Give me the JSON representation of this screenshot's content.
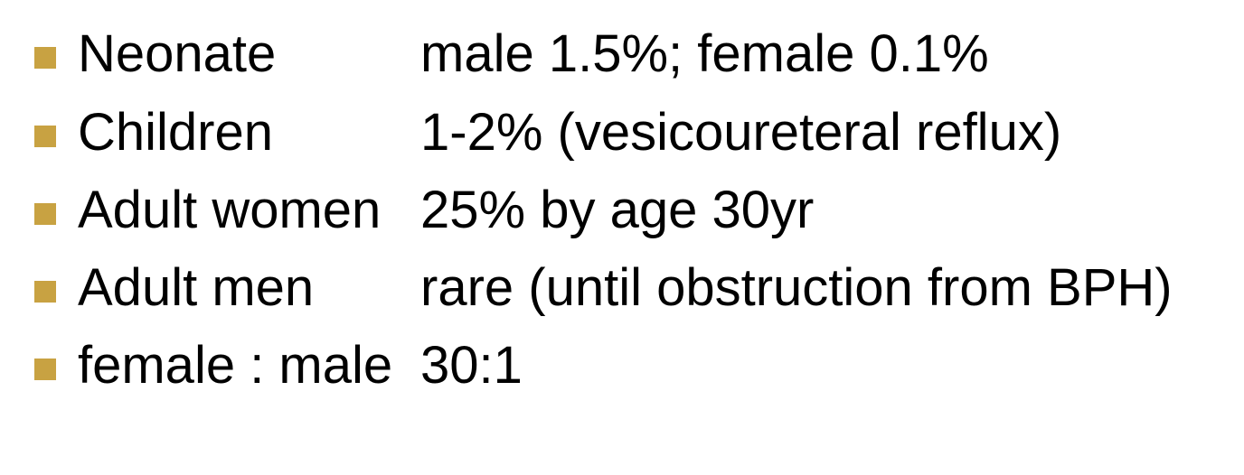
{
  "rows": [
    {
      "label": "Neonate",
      "value": "male 1.5%; female 0.1%"
    },
    {
      "label": "Children",
      "value": "1-2% (vesicoureteral reflux)"
    },
    {
      "label": "Adult women",
      "value": "25% by age 30yr"
    },
    {
      "label": "Adult men",
      "value": "rare (until obstruction from BPH)"
    },
    {
      "label": "female : male",
      "value": "30:1"
    }
  ],
  "colors": {
    "bullet": "#c8a242",
    "text": "#000000",
    "background": "#ffffff"
  }
}
